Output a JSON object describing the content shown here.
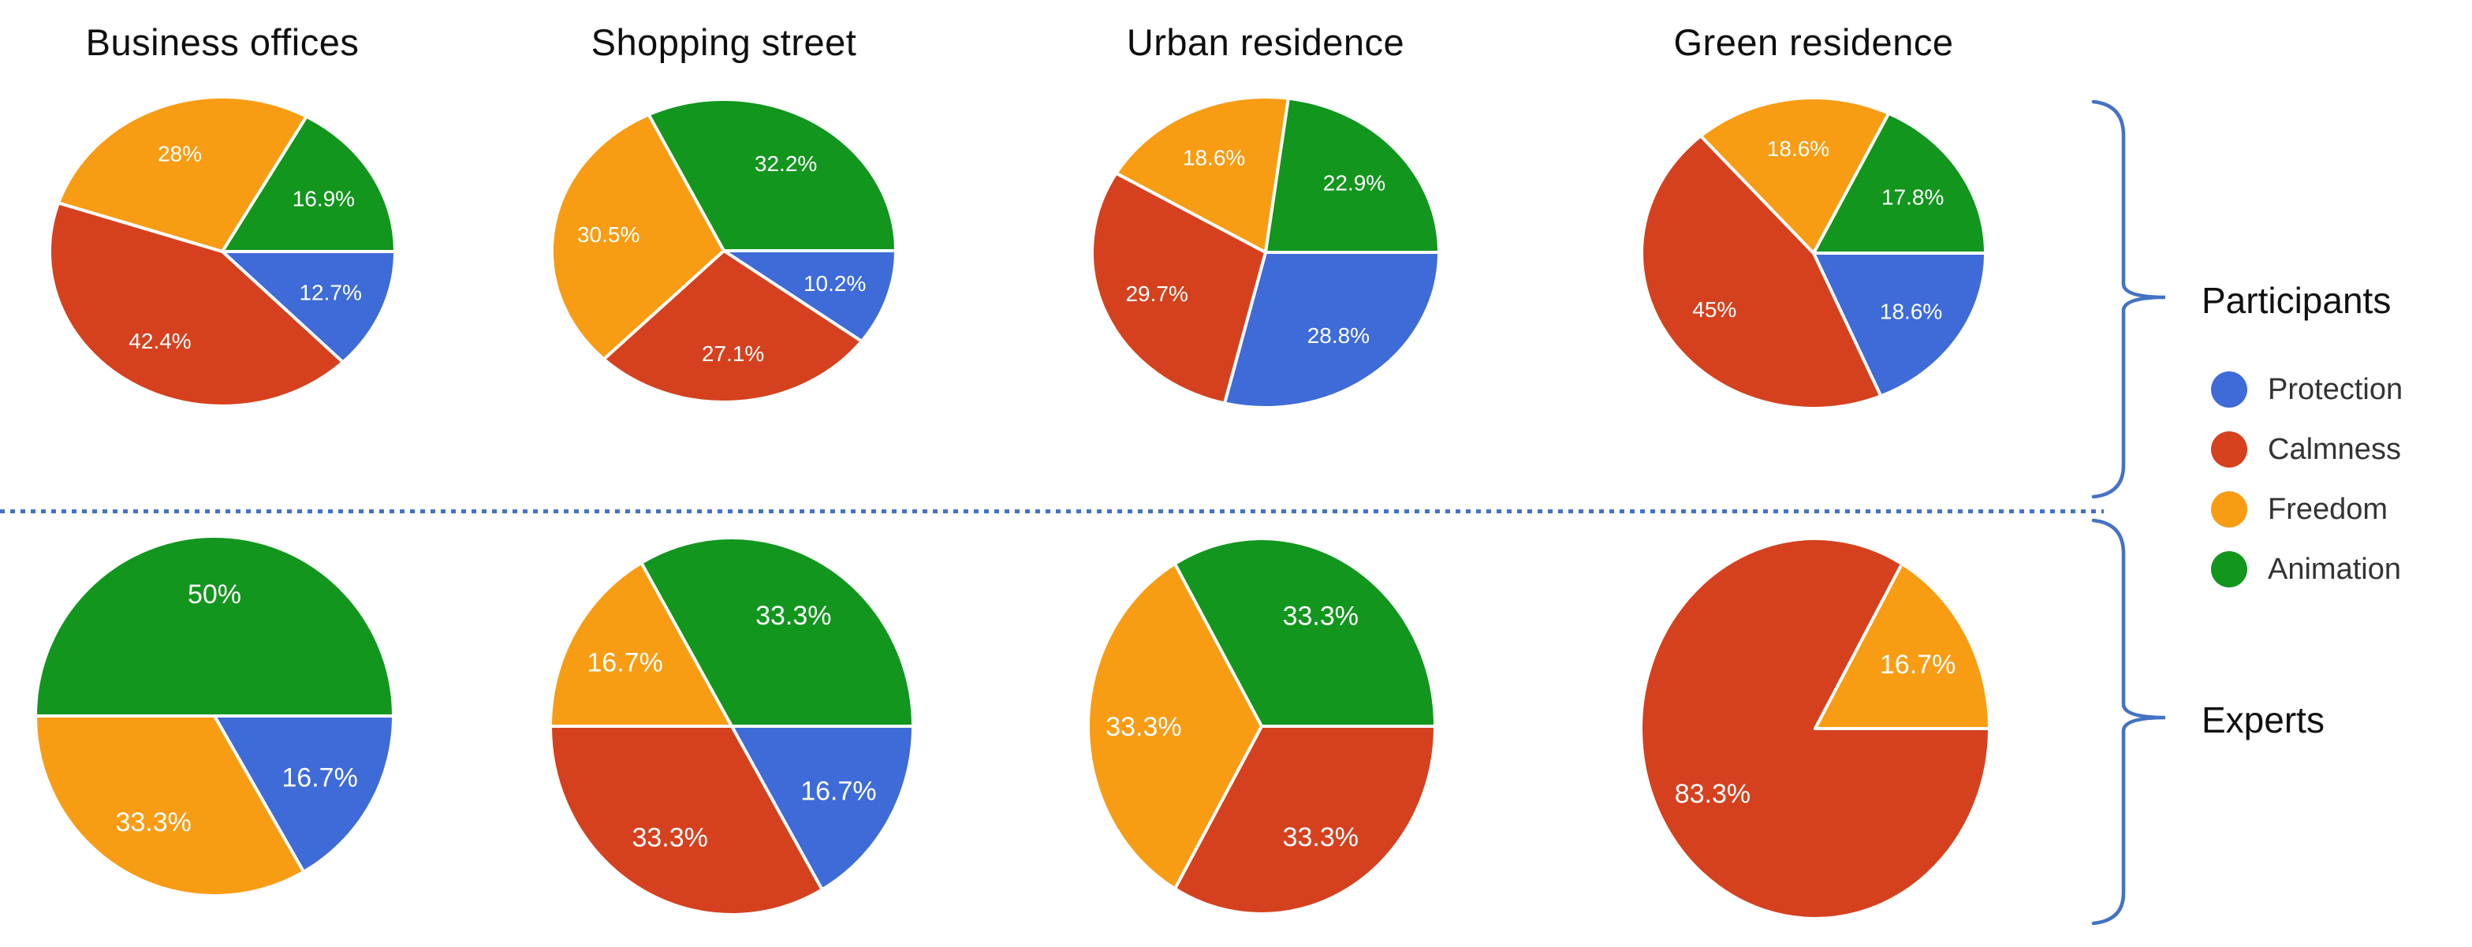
{
  "columns": [
    "Business offices",
    "Shopping street",
    "Urban residence",
    "Green residence"
  ],
  "rows": [
    {
      "label": "Participants"
    },
    {
      "label": "Experts"
    }
  ],
  "legend": {
    "items": [
      {
        "label": "Protection",
        "color": "#3E6BD7"
      },
      {
        "label": "Calmness",
        "color": "#D5411E"
      },
      {
        "label": "Freedom",
        "color": "#F89C13"
      },
      {
        "label": "Animation",
        "color": "#12961E"
      }
    ]
  },
  "accents": {
    "brace_divider_color": "#4472C4"
  },
  "chart_data": [
    {
      "type": "pie",
      "group": "Participants",
      "location": "Business offices",
      "unit": "%",
      "start_angle_deg": 90,
      "direction": "clockwise",
      "slices": [
        {
          "category": "Protection",
          "value": 12.7,
          "label": "12.7%"
        },
        {
          "category": "Calmness",
          "value": 42.4,
          "label": "42.4%"
        },
        {
          "category": "Freedom",
          "value": 28,
          "label": "28%"
        },
        {
          "category": "Animation",
          "value": 16.9,
          "label": "16.9%"
        }
      ]
    },
    {
      "type": "pie",
      "group": "Participants",
      "location": "Shopping street",
      "unit": "%",
      "start_angle_deg": 90,
      "direction": "clockwise",
      "slices": [
        {
          "category": "Protection",
          "value": 10.2,
          "label": "10.2%"
        },
        {
          "category": "Calmness",
          "value": 27.1,
          "label": "27.1%"
        },
        {
          "category": "Freedom",
          "value": 30.5,
          "label": "30.5%"
        },
        {
          "category": "Animation",
          "value": 32.2,
          "label": "32.2%"
        }
      ]
    },
    {
      "type": "pie",
      "group": "Participants",
      "location": "Urban residence",
      "unit": "%",
      "start_angle_deg": 90,
      "direction": "clockwise",
      "slices": [
        {
          "category": "Protection",
          "value": 28.8,
          "label": "28.8%"
        },
        {
          "category": "Calmness",
          "value": 29.7,
          "label": "29.7%"
        },
        {
          "category": "Freedom",
          "value": 18.6,
          "label": "18.6%"
        },
        {
          "category": "Animation",
          "value": 22.9,
          "label": "22.9%"
        }
      ]
    },
    {
      "type": "pie",
      "group": "Participants",
      "location": "Green residence",
      "unit": "%",
      "start_angle_deg": 90,
      "direction": "clockwise",
      "slices": [
        {
          "category": "Protection",
          "value": 18.6,
          "label": "18.6%"
        },
        {
          "category": "Calmness",
          "value": 45,
          "label": "45%"
        },
        {
          "category": "Freedom",
          "value": 18.6,
          "label": "18.6%"
        },
        {
          "category": "Animation",
          "value": 17.8,
          "label": "17.8%"
        }
      ]
    },
    {
      "type": "pie",
      "group": "Experts",
      "location": "Business offices",
      "unit": "%",
      "start_angle_deg": 90,
      "direction": "clockwise",
      "slices": [
        {
          "category": "Protection",
          "value": 16.7,
          "label": "16.7%"
        },
        {
          "category": "Freedom",
          "value": 33.3,
          "label": "33.3%"
        },
        {
          "category": "Animation",
          "value": 50,
          "label": "50%"
        }
      ]
    },
    {
      "type": "pie",
      "group": "Experts",
      "location": "Shopping street",
      "unit": "%",
      "start_angle_deg": 90,
      "direction": "clockwise",
      "slices": [
        {
          "category": "Protection",
          "value": 16.7,
          "label": "16.7%"
        },
        {
          "category": "Calmness",
          "value": 33.3,
          "label": "33.3%"
        },
        {
          "category": "Freedom",
          "value": 16.7,
          "label": "16.7%"
        },
        {
          "category": "Animation",
          "value": 33.3,
          "label": "33.3%"
        }
      ]
    },
    {
      "type": "pie",
      "group": "Experts",
      "location": "Urban residence",
      "unit": "%",
      "start_angle_deg": 90,
      "direction": "clockwise",
      "slices": [
        {
          "category": "Calmness",
          "value": 33.3,
          "label": "33.3%"
        },
        {
          "category": "Freedom",
          "value": 33.3,
          "label": "33.3%"
        },
        {
          "category": "Animation",
          "value": 33.3,
          "label": "33.3%"
        }
      ]
    },
    {
      "type": "pie",
      "group": "Experts",
      "location": "Green residence",
      "unit": "%",
      "start_angle_deg": 90,
      "direction": "clockwise",
      "slices": [
        {
          "category": "Calmness",
          "value": 83.3,
          "label": "83.3%"
        },
        {
          "category": "Freedom",
          "value": 16.7,
          "label": "16.7%"
        }
      ]
    }
  ]
}
